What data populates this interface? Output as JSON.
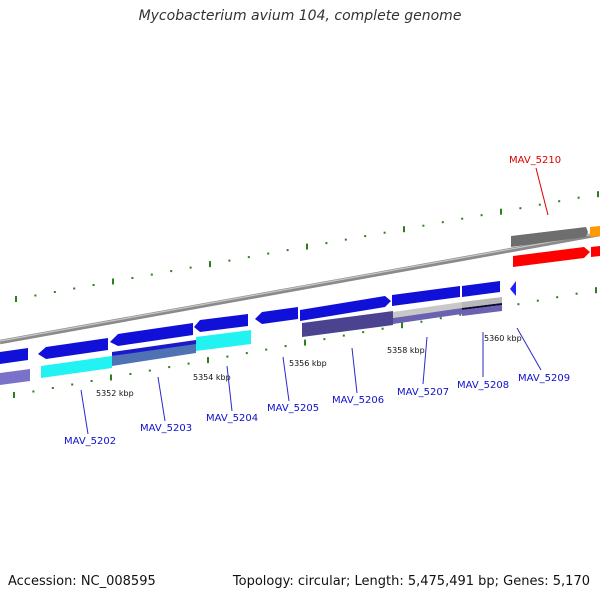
{
  "title": "Mycobacterium avium 104, complete genome",
  "footer": {
    "accession": "Accession: NC_008595",
    "summary": "Topology: circular; Length: 5,475,491 bp; Genes: 5,170"
  },
  "colors": {
    "backbone": "#808080",
    "tick": "#2e7d1e",
    "gene_dark": "#0000cc",
    "gene_bright": "#1a1aff",
    "cyan": "#00ffff",
    "steel": "#4f72b5",
    "purple": "#5a4fa0",
    "light_purple": "#8e88d4",
    "grey": "#737373",
    "red": "#ff0000",
    "orange": "#ff9900",
    "label_blue": "#0000cc",
    "label_red": "#dd0000"
  },
  "scale_labels": [
    "5352 kbp",
    "5354 kbp",
    "5356 kbp",
    "5358 kbp",
    "5360 kbp"
  ],
  "gene_labels": [
    "MAV_5202",
    "MAV_5203",
    "MAV_5204",
    "MAV_5205",
    "MAV_5206",
    "MAV_5207",
    "MAV_5208",
    "MAV_5209",
    "MAV_5210"
  ],
  "highlighted_gene": "MAV_5210"
}
